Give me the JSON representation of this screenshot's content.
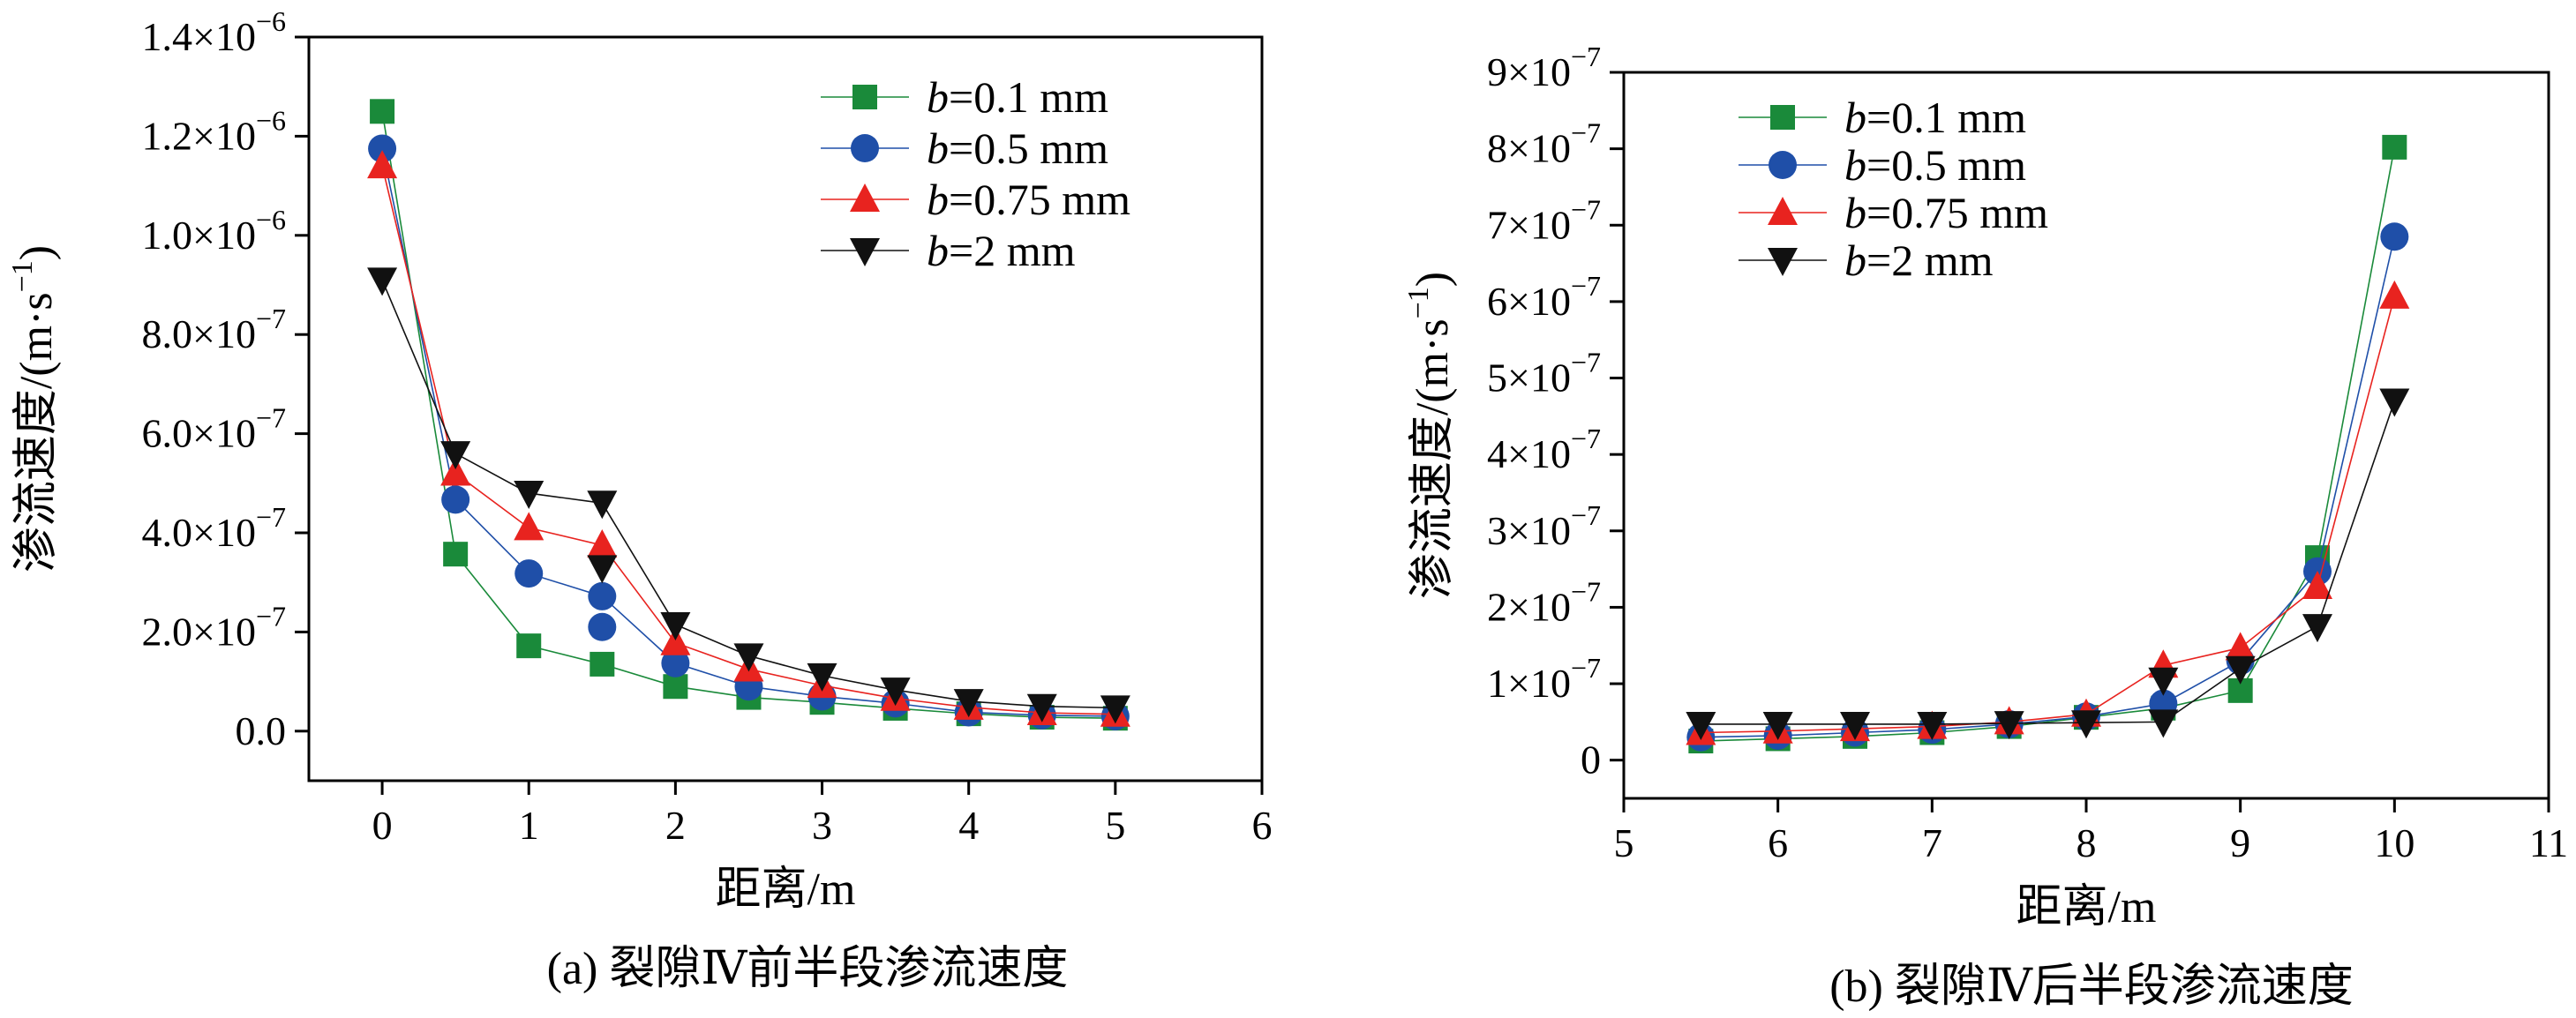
{
  "colors": {
    "b01": "#1a8a3a",
    "b05": "#1f4fa8",
    "b075": "#e8231f",
    "b2": "#111111"
  },
  "legend": [
    {
      "prefix": "b",
      "suffix": "=0.1 mm",
      "marker": "square",
      "color": "#1a8a3a"
    },
    {
      "prefix": "b",
      "suffix": "=0.5 mm",
      "marker": "circle",
      "color": "#1f4fa8"
    },
    {
      "prefix": "b",
      "suffix": "=0.75 mm",
      "marker": "triangle-up",
      "color": "#e8231f"
    },
    {
      "prefix": "b",
      "suffix": "=2 mm",
      "marker": "triangle-down",
      "color": "#111111"
    }
  ],
  "chart_data": [
    {
      "type": "line",
      "caption": "(a) 裂隙Ⅳ前半段渗流速度",
      "xlabel": "距离/m",
      "ylabel_main": "渗流速度/(m·s",
      "ylabel_sup": "−1",
      "ylabel_close": ")",
      "xlim": [
        -0.5,
        6
      ],
      "ylim": [
        -1e-07,
        1.4e-06
      ],
      "x_ticks": [
        0,
        1,
        2,
        3,
        4,
        5,
        6
      ],
      "y_ticks": [
        {
          "value": 0,
          "mant": "0.0",
          "exp": ""
        },
        {
          "value": 2e-07,
          "mant": "2.0×10",
          "exp": "−7"
        },
        {
          "value": 4e-07,
          "mant": "4.0×10",
          "exp": "−7"
        },
        {
          "value": 6e-07,
          "mant": "6.0×10",
          "exp": "−7"
        },
        {
          "value": 8e-07,
          "mant": "8.0×10",
          "exp": "−7"
        },
        {
          "value": 1e-06,
          "mant": "1.0×10",
          "exp": "−6"
        },
        {
          "value": 1.2e-06,
          "mant": "1.2×10",
          "exp": "−6"
        },
        {
          "value": 1.4e-06,
          "mant": "1.4×10",
          "exp": "−6"
        }
      ],
      "x": [
        0,
        0.5,
        1,
        1.5,
        2,
        2.5,
        3,
        3.5,
        4,
        4.5,
        5
      ],
      "series": [
        {
          "name": "b=0.1 mm",
          "key": "b01",
          "marker": "square",
          "values": [
            1.25e-06,
            3.57e-07,
            1.72e-07,
            1.35e-07,
            9e-08,
            6.8e-08,
            5.8e-08,
            4.6e-08,
            3.5e-08,
            2.8e-08,
            2.6e-08
          ]
        },
        {
          "name": "b=0.5 mm",
          "key": "b05",
          "marker": "circle",
          "values": [
            1.175e-06,
            4.67e-07,
            3.18e-07,
            2.72e-07,
            1.37e-07,
            9e-08,
            7e-08,
            5.6e-08,
            3.8e-08,
            3.2e-08,
            3e-08
          ]
        },
        {
          "name": "b=0.75 mm",
          "key": "b075",
          "marker": "triangle-up",
          "values": [
            1.14e-06,
            5.2e-07,
            4.1e-07,
            3.75e-07,
            1.78e-07,
            1.25e-07,
            9.2e-08,
            6.6e-08,
            4.8e-08,
            3.7e-08,
            3.4e-08
          ]
        },
        {
          "name": "b=2 mm",
          "key": "b2",
          "marker": "triangle-down",
          "values": [
            9.1e-07,
            5.6e-07,
            4.8e-07,
            4.6e-07,
            2.15e-07,
            1.52e-07,
            1.12e-07,
            8.3e-08,
            6e-08,
            5e-08,
            4.7e-08
          ]
        }
      ],
      "extra_points": [
        {
          "key": "b05",
          "marker": "circle",
          "x": 1.5,
          "y": 2.1e-07
        },
        {
          "key": "b2",
          "marker": "triangle-down",
          "x": 1.5,
          "y": 3.3e-07
        }
      ]
    },
    {
      "type": "line",
      "caption": "(b) 裂隙Ⅳ后半段渗流速度",
      "xlabel": "距离/m",
      "ylabel_main": "渗流速度/(m·s",
      "ylabel_sup": "−1",
      "ylabel_close": ")",
      "xlim": [
        5,
        11
      ],
      "ylim": [
        -5e-08,
        9e-07
      ],
      "x_ticks": [
        5,
        6,
        7,
        8,
        9,
        10,
        11
      ],
      "y_ticks": [
        {
          "value": 0,
          "mant": "0",
          "exp": ""
        },
        {
          "value": 1e-07,
          "mant": "1×10",
          "exp": "−7"
        },
        {
          "value": 2e-07,
          "mant": "2×10",
          "exp": "−7"
        },
        {
          "value": 3e-07,
          "mant": "3×10",
          "exp": "−7"
        },
        {
          "value": 4e-07,
          "mant": "4×10",
          "exp": "−7"
        },
        {
          "value": 5e-07,
          "mant": "5×10",
          "exp": "−7"
        },
        {
          "value": 6e-07,
          "mant": "6×10",
          "exp": "−7"
        },
        {
          "value": 7e-07,
          "mant": "7×10",
          "exp": "−7"
        },
        {
          "value": 8e-07,
          "mant": "8×10",
          "exp": "−7"
        },
        {
          "value": 9e-07,
          "mant": "9×10",
          "exp": "−7"
        }
      ],
      "x": [
        5.5,
        6,
        6.5,
        7,
        7.5,
        8,
        8.5,
        9,
        9.5,
        10
      ],
      "series": [
        {
          "name": "b=0.1 mm",
          "key": "b01",
          "marker": "square",
          "values": [
            2.5e-08,
            2.8e-08,
            3.1e-08,
            3.6e-08,
            4.4e-08,
            5.6e-08,
            6.8e-08,
            9.1e-08,
            2.65e-07,
            8.02e-07
          ]
        },
        {
          "name": "b=0.5 mm",
          "key": "b05",
          "marker": "circle",
          "values": [
            3e-08,
            3.2e-08,
            3.6e-08,
            4e-08,
            4.7e-08,
            5.7e-08,
            7.4e-08,
            1.3e-07,
            2.47e-07,
            6.85e-07
          ]
        },
        {
          "name": "b=0.75 mm",
          "key": "b075",
          "marker": "triangle-up",
          "values": [
            3.6e-08,
            3.8e-08,
            4.1e-08,
            4.4e-08,
            5e-08,
            6e-08,
            1.24e-07,
            1.47e-07,
            2.27e-07,
            6.07e-07
          ]
        },
        {
          "name": "b=2 mm",
          "key": "b2",
          "marker": "triangle-down",
          "values": [
            4.7e-08,
            4.7e-08,
            4.7e-08,
            4.7e-08,
            4.8e-08,
            4.9e-08,
            5e-08,
            1.2e-07,
            1.75e-07,
            4.7e-07
          ]
        }
      ],
      "extra_points": [
        {
          "key": "b2",
          "marker": "triangle-down",
          "x": 8.5,
          "y": 1.05e-07
        }
      ]
    }
  ]
}
